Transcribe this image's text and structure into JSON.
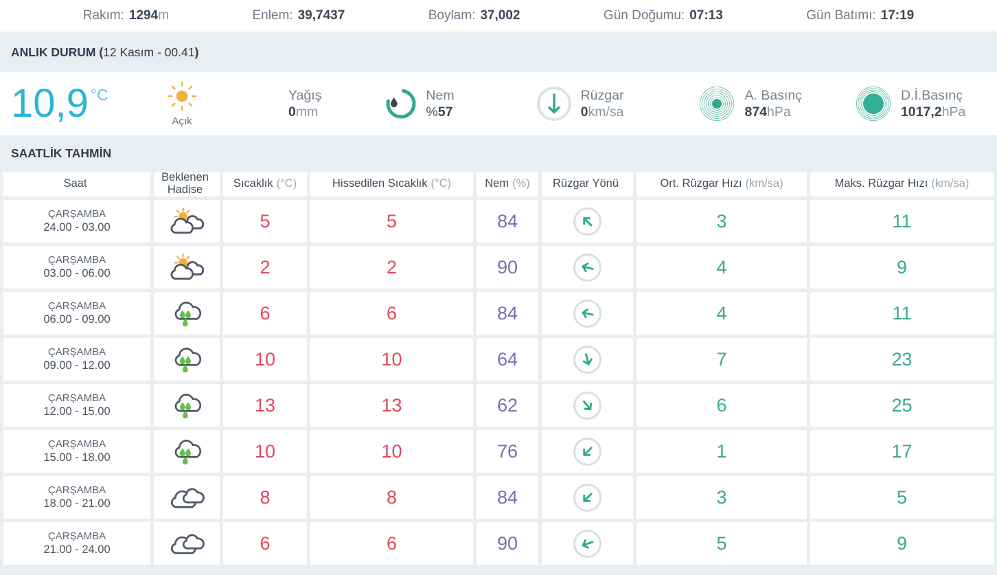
{
  "colors": {
    "accent_teal": "#2fa98d",
    "temp_red": "#e2485c",
    "humidity_purple": "#7c6fae",
    "current_temp_cyan": "#2bb5d4",
    "sun_yellow": "#f0b23e",
    "rain_drop_green": "#67bf4a",
    "dark_text": "#3b4857",
    "gray_text": "#8a97a5",
    "page_background": "#e9eef2"
  },
  "topbar": {
    "items": [
      {
        "label": "Rakım:",
        "value": "1294",
        "unit": "m"
      },
      {
        "label": "Enlem:",
        "value": "39,7437",
        "unit": ""
      },
      {
        "label": "Boylam:",
        "value": "37,002",
        "unit": ""
      },
      {
        "label": "Gün Doğumu:",
        "value": "07:13",
        "unit": ""
      },
      {
        "label": "Gün Batımı:",
        "value": "17:19",
        "unit": ""
      }
    ]
  },
  "current": {
    "title_prefix": "ANLIK DURUM (",
    "title_datetime": "12 Kasım - 00.41",
    "title_suffix": ")",
    "temperature": "10,9",
    "temperature_unit": "°C",
    "condition_label": "Açık",
    "condition_icon": "sun-icon",
    "metrics": [
      {
        "icon": "",
        "label": "Yağış",
        "prefix": "",
        "value": "0",
        "unit": "mm"
      },
      {
        "icon": "humidity-icon",
        "label": "Nem",
        "prefix": "%",
        "value": "57",
        "unit": ""
      },
      {
        "icon": "wind-icon",
        "label": "Rüzgar",
        "prefix": "",
        "value": "0",
        "unit": "km/sa"
      },
      {
        "icon": "pressure-icon",
        "label": "A. Basınç",
        "prefix": "",
        "value": "874",
        "unit": "hPa"
      },
      {
        "icon": "sea-pressure-icon",
        "label": "D.İ.Basınç",
        "prefix": "",
        "value": "1017,2",
        "unit": "hPa"
      }
    ]
  },
  "hourly": {
    "section_title": "SAATLİK TAHMİN",
    "headers": [
      {
        "text": "Saat",
        "sub": ""
      },
      {
        "text": "Beklenen Hadise",
        "sub": ""
      },
      {
        "text": "Sıcaklık",
        "sub": "(°C)"
      },
      {
        "text": "Hissedilen Sıcaklık",
        "sub": "(°C)"
      },
      {
        "text": "Nem",
        "sub": "(%)"
      },
      {
        "text": "Rüzgar Yönü",
        "sub": ""
      },
      {
        "text": "Ort. Rüzgar Hızı",
        "sub": "(km/sa)"
      },
      {
        "text": "Maks. Rüzgar Hızı",
        "sub": "(km/sa)"
      }
    ],
    "rows": [
      {
        "day": "ÇARŞAMBA",
        "time": "24.00 - 03.00",
        "condition_icon": "sun-clouds-icon",
        "temp": "5",
        "feels": "5",
        "humidity": "84",
        "wind_dir_deg": 315,
        "avg_wind": "3",
        "max_wind": "11"
      },
      {
        "day": "ÇARŞAMBA",
        "time": "03.00 - 06.00",
        "condition_icon": "sun-clouds-icon",
        "temp": "2",
        "feels": "2",
        "humidity": "90",
        "wind_dir_deg": 285,
        "avg_wind": "4",
        "max_wind": "9"
      },
      {
        "day": "ÇARŞAMBA",
        "time": "06.00 - 09.00",
        "condition_icon": "rain-icon",
        "temp": "6",
        "feels": "6",
        "humidity": "84",
        "wind_dir_deg": 282,
        "avg_wind": "4",
        "max_wind": "11"
      },
      {
        "day": "ÇARŞAMBA",
        "time": "09.00 - 12.00",
        "condition_icon": "rain-icon",
        "temp": "10",
        "feels": "10",
        "humidity": "64",
        "wind_dir_deg": 165,
        "avg_wind": "7",
        "max_wind": "23"
      },
      {
        "day": "ÇARŞAMBA",
        "time": "12.00 - 15.00",
        "condition_icon": "rain-icon",
        "temp": "13",
        "feels": "13",
        "humidity": "62",
        "wind_dir_deg": 140,
        "avg_wind": "6",
        "max_wind": "25"
      },
      {
        "day": "ÇARŞAMBA",
        "time": "15.00 - 18.00",
        "condition_icon": "rain-icon",
        "temp": "10",
        "feels": "10",
        "humidity": "76",
        "wind_dir_deg": 225,
        "avg_wind": "1",
        "max_wind": "17"
      },
      {
        "day": "ÇARŞAMBA",
        "time": "18.00 - 21.00",
        "condition_icon": "clouds-icon",
        "temp": "8",
        "feels": "8",
        "humidity": "84",
        "wind_dir_deg": 225,
        "avg_wind": "3",
        "max_wind": "5"
      },
      {
        "day": "ÇARŞAMBA",
        "time": "21.00 - 24.00",
        "condition_icon": "clouds-icon",
        "temp": "6",
        "feels": "6",
        "humidity": "90",
        "wind_dir_deg": 250,
        "avg_wind": "5",
        "max_wind": "9"
      }
    ]
  }
}
